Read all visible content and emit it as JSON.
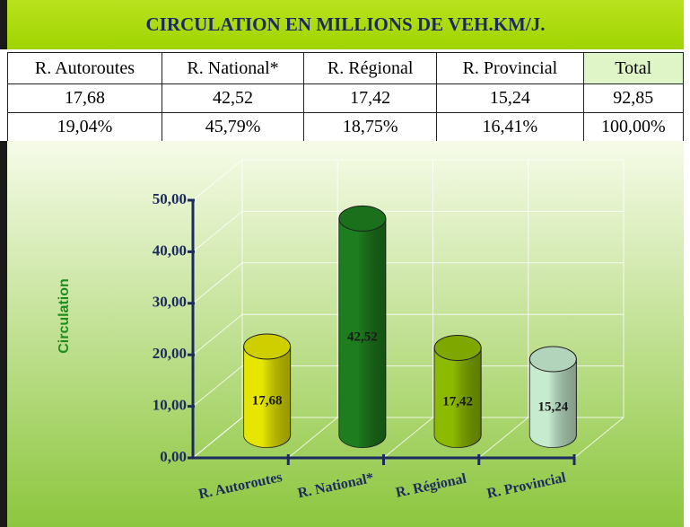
{
  "header": {
    "title": "CIRCULATION EN MILLIONS DE VEH.KM/J."
  },
  "table": {
    "rows": [
      [
        "R. Autoroutes",
        "R. National*",
        "R. Régional",
        "R. Provincial",
        "Total"
      ],
      [
        "17,68",
        "42,52",
        "17,42",
        "15,24",
        "92,85"
      ],
      [
        "19,04%",
        "45,79%",
        "18,75%",
        "16,41%",
        "100,00%"
      ]
    ]
  },
  "chart_data": {
    "type": "bar",
    "y_label": "Circulation",
    "categories": [
      "R. Autoroutes",
      "R. National*",
      "R. Régional",
      "R. Provincial"
    ],
    "values": [
      17.68,
      42.52,
      17.42,
      15.24
    ],
    "value_labels": [
      "17,68",
      "42,52",
      "17,42",
      "15,24"
    ],
    "colors": [
      "#e6e600",
      "#1e7d1e",
      "#8cba00",
      "#c6ebcf"
    ],
    "ylim": [
      0,
      50
    ],
    "yticks": [
      {
        "value": 0,
        "label": "0,00"
      },
      {
        "value": 10,
        "label": "10,00"
      },
      {
        "value": 20,
        "label": "20,00"
      },
      {
        "value": 30,
        "label": "30,00"
      },
      {
        "value": 40,
        "label": "40,00"
      },
      {
        "value": 50,
        "label": "50,00"
      }
    ],
    "grid": true
  }
}
